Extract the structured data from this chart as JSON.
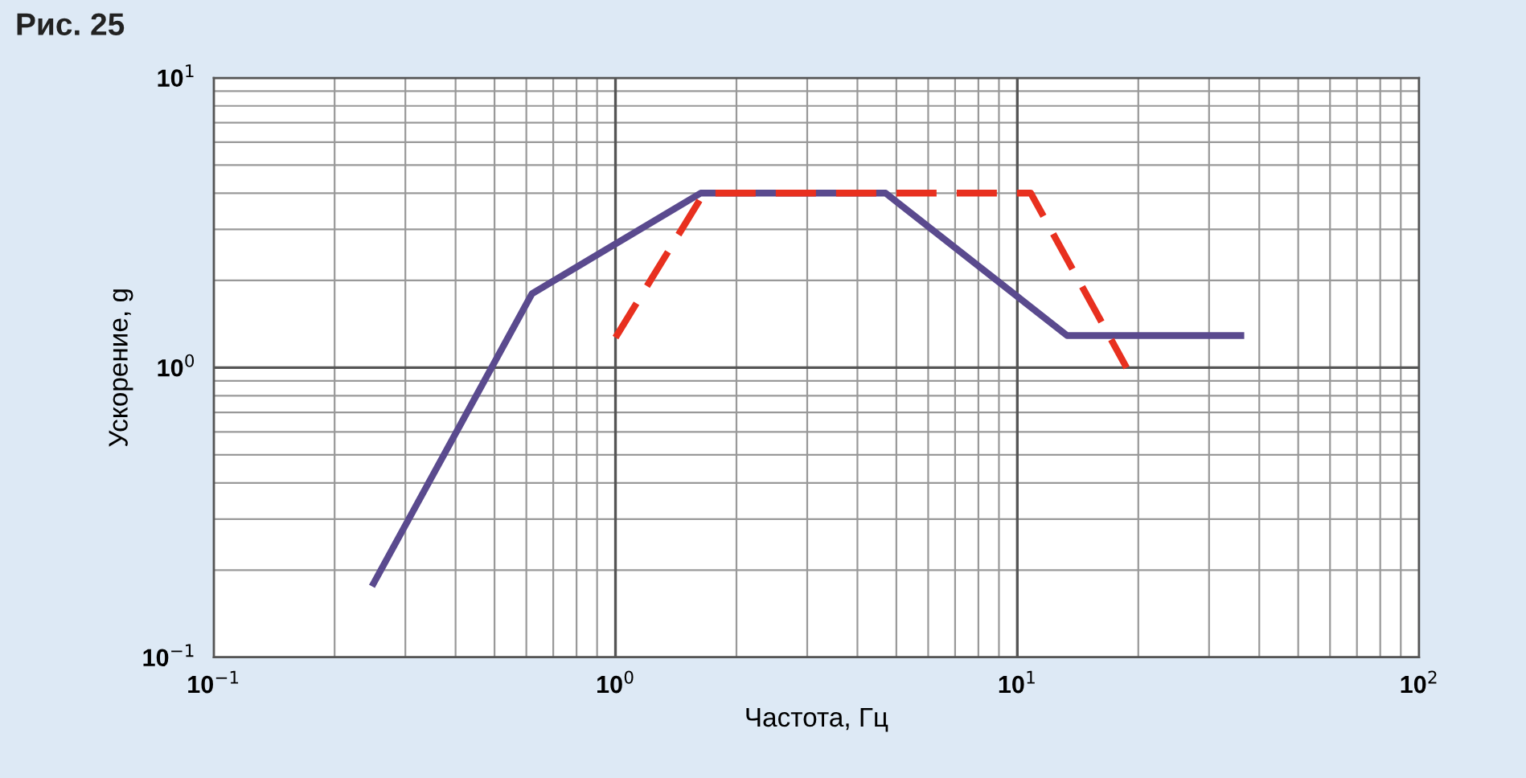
{
  "chart_data": {
    "type": "line",
    "title": "Рис. 25",
    "xlabel": "Частота, Гц",
    "ylabel": "Ускорение, g",
    "log": "xy",
    "grid": true,
    "legend": false,
    "xlim": [
      0.1,
      100
    ],
    "ylim": [
      0.1,
      10
    ],
    "xticks": [
      {
        "value": 0.1,
        "label": "10$^{−1}$"
      },
      {
        "value": 1,
        "label": "10$^{0}$"
      },
      {
        "value": 10,
        "label": "10$^{1}$"
      },
      {
        "value": 100,
        "label": "10$^{2}$"
      }
    ],
    "yticks": [
      {
        "value": 0.1,
        "label": "10$^{−1}$"
      },
      {
        "value": 1,
        "label": "10$^{0}$"
      },
      {
        "value": 10,
        "label": "10$^{1}$"
      }
    ],
    "series": [
      {
        "color": "#5a4a8e",
        "line_style": "solid",
        "x": [
          0.25,
          0.62,
          1.63,
          4.7,
          13.3,
          36
        ],
        "values": [
          0.18,
          1.8,
          4.0,
          4.0,
          1.29,
          1.29
        ]
      },
      {
        "color": "#e8301f",
        "line_style": "dashed",
        "x": [
          1.0,
          1.66,
          10.8,
          18.7
        ],
        "values": [
          1.27,
          4.0,
          4.0,
          1.0
        ]
      }
    ]
  }
}
